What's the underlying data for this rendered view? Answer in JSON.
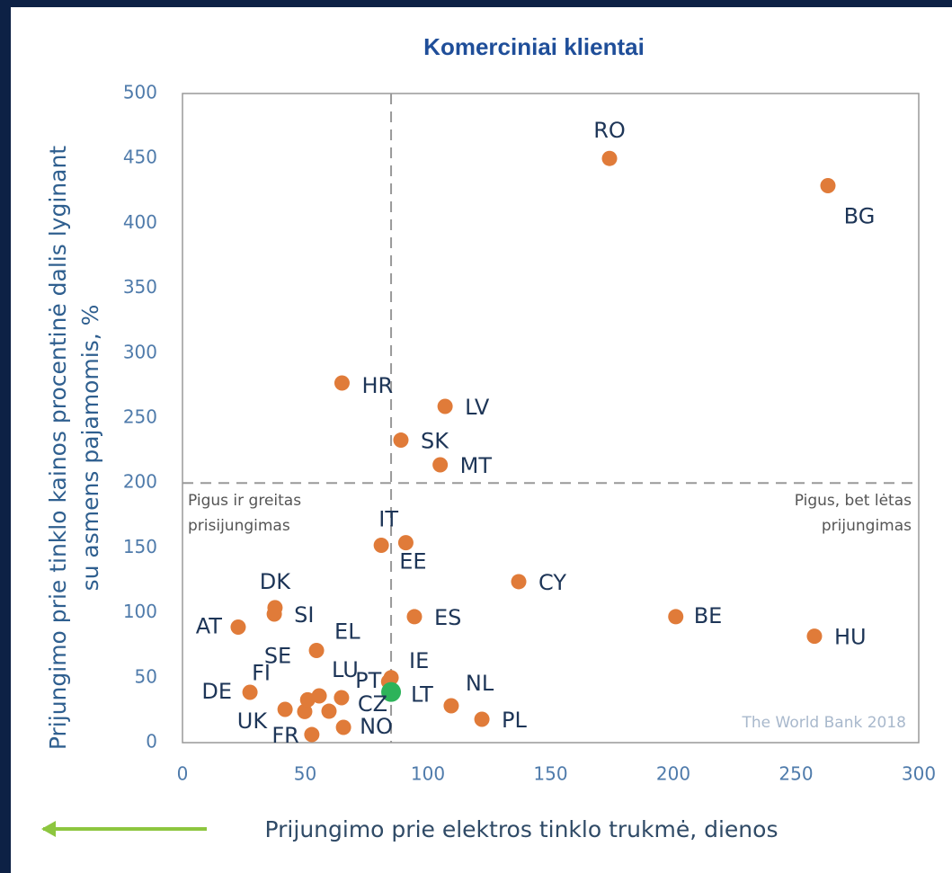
{
  "chart_data": {
    "type": "scatter",
    "title": "Komerciniai klientai",
    "y_label": [
      "Prijungimo prie tinklo kainos procentinė dalis lyginant",
      "su asmens pajamomis, %"
    ],
    "x_label": "Prijungimo prie elektros tinklo trukmė, dienos",
    "annotations": [
      [
        "Pigus ir greitas",
        "prisijungimas"
      ],
      [
        "Pigus, bet lėtas",
        "prijungimas"
      ],
      [
        "The World Bank 2018"
      ]
    ],
    "reference_lines": {
      "x": 85,
      "y": 200
    },
    "xlim": [
      0,
      300
    ],
    "xticks": [
      0,
      50,
      100,
      150,
      200,
      250,
      300
    ],
    "ylim": [
      0,
      500
    ],
    "yticks": [
      0,
      50,
      100,
      150,
      200,
      250,
      300,
      350,
      400,
      450,
      500
    ],
    "labels": [
      "RO",
      "BG",
      "HR",
      "LV",
      "SK",
      "MT",
      "IT",
      "EE",
      "CY",
      "BE",
      "HU",
      "AT",
      "DK",
      "SI",
      "ES",
      "EL",
      "IE",
      "PT",
      "LT",
      "NL",
      "PL",
      "DE",
      "UK",
      "FI",
      "SE",
      "LU",
      "CZ",
      null,
      "FR",
      "NO"
    ],
    "x": [
      174,
      263,
      65,
      107,
      89,
      105,
      81,
      91,
      137,
      201,
      257.5,
      22.7,
      37.7,
      37.4,
      94.5,
      54.6,
      85,
      84,
      85,
      109.5,
      122,
      27.5,
      41.8,
      49.8,
      51,
      55.7,
      64.8,
      59.7,
      52.7,
      65.6
    ],
    "y": [
      450,
      429,
      277,
      259,
      233,
      214,
      152,
      154,
      124,
      97,
      82,
      89,
      104,
      99,
      97,
      71,
      50,
      47,
      39,
      28.4,
      18,
      38.8,
      25.6,
      24,
      33,
      36,
      34.6,
      24.2,
      6.2,
      11.8
    ],
    "color": "#e07b39",
    "highlight": {
      "label": "LT",
      "color": "#2db35a"
    }
  }
}
